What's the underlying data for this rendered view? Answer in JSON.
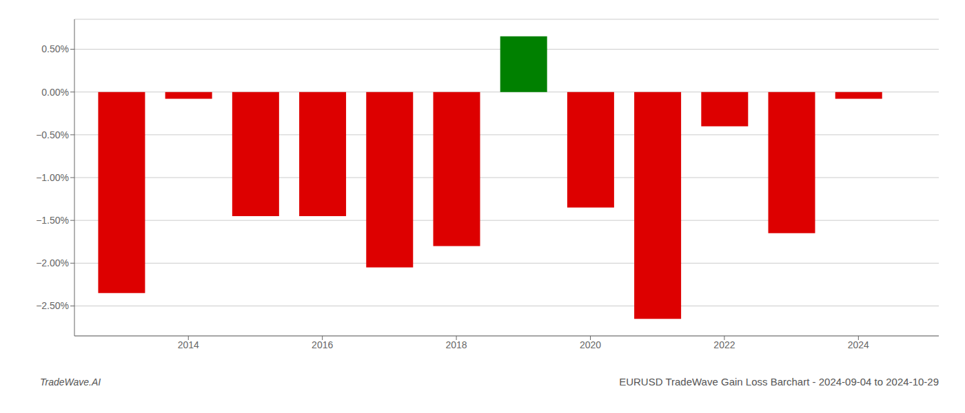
{
  "chart_data": {
    "type": "bar",
    "title": "EURUSD TradeWave Gain Loss Barchart - 2024-09-04 to 2024-10-29",
    "annotations": [
      "TradeWave.AI"
    ],
    "x": [
      2013,
      2014,
      2015,
      2016,
      2017,
      2018,
      2019,
      2020,
      2021,
      2022,
      2023,
      2024
    ],
    "values": [
      -2.35,
      -0.08,
      -1.45,
      -1.45,
      -2.05,
      -1.8,
      0.65,
      -1.35,
      -2.65,
      -0.4,
      -1.65,
      -0.08
    ],
    "colors": [
      "#dd0000",
      "#dd0000",
      "#dd0000",
      "#dd0000",
      "#dd0000",
      "#dd0000",
      "#008000",
      "#dd0000",
      "#dd0000",
      "#dd0000",
      "#dd0000",
      "#dd0000"
    ],
    "xlim": [
      2012.3,
      2025.2
    ],
    "xticks": [
      2014,
      2016,
      2018,
      2020,
      2022,
      2024
    ],
    "ylim": [
      -2.85,
      0.85
    ],
    "yticks": [
      {
        "value": 0.5,
        "label": "0.50%"
      },
      {
        "value": 0,
        "label": "0.00%"
      },
      {
        "value": -0.5,
        "label": "−0.50%"
      },
      {
        "value": -1,
        "label": "−1.00%"
      },
      {
        "value": -1.5,
        "label": "−1.50%"
      },
      {
        "value": -2,
        "label": "−2.00%"
      },
      {
        "value": -2.5,
        "label": "−2.50%"
      }
    ],
    "grid": true
  }
}
